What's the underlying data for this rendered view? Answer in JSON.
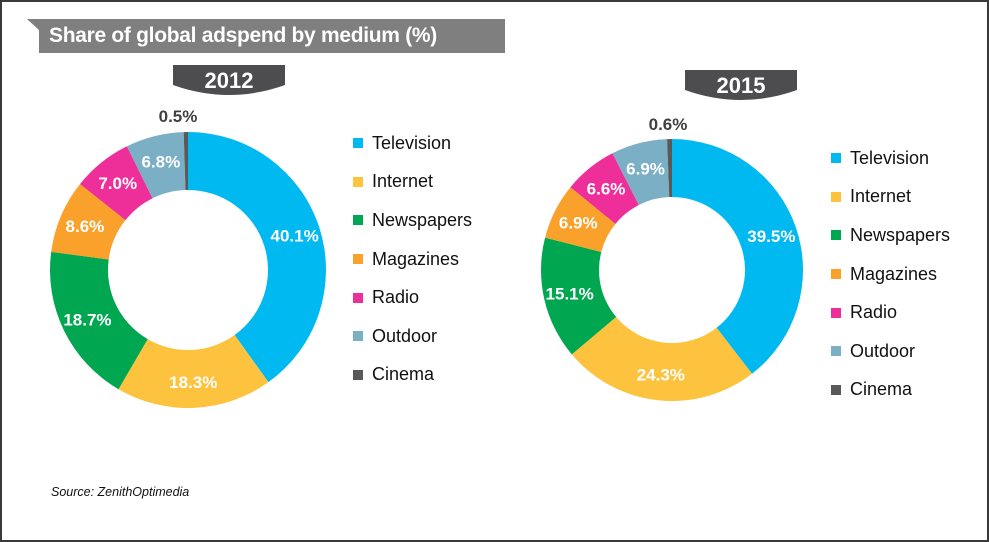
{
  "title": "Share of global adspend by medium (%)",
  "source": "Source: ZenithOptimedia",
  "colors": {
    "banner": "#7f7f7f",
    "tab": "#4d4d4f",
    "Television": "#00B9F1",
    "Internet": "#FDC33E",
    "Newspapers": "#00A650",
    "Magazines": "#F9A12A",
    "Radio": "#EE2F9A",
    "Outdoor": "#7AAFC6",
    "Cinema": "#595959"
  },
  "chart_data": [
    {
      "type": "pie",
      "variant": "donut",
      "title": "2012",
      "categories": [
        "Television",
        "Internet",
        "Newspapers",
        "Magazines",
        "Radio",
        "Outdoor",
        "Cinema"
      ],
      "values": [
        40.1,
        18.3,
        18.7,
        8.6,
        7.0,
        6.8,
        0.5
      ],
      "labels": [
        "40.1%",
        "18.3%",
        "18.7%",
        "8.6%",
        "7.0%",
        "6.8%",
        "0.5%"
      ],
      "legend": [
        "Television",
        "Internet",
        "Newspapers",
        "Magazines",
        "Radio",
        "Outdoor",
        "Cinema"
      ],
      "legend_position": "right",
      "start": "top",
      "direction": "clockwise"
    },
    {
      "type": "pie",
      "variant": "donut",
      "title": "2015",
      "categories": [
        "Television",
        "Internet",
        "Newspapers",
        "Magazines",
        "Radio",
        "Outdoor",
        "Cinema"
      ],
      "values": [
        39.5,
        24.3,
        15.1,
        6.9,
        6.6,
        6.9,
        0.6
      ],
      "labels": [
        "39.5%",
        "24.3%",
        "15.1%",
        "6.9%",
        "6.6%",
        "6.9%",
        "0.6%"
      ],
      "legend": [
        "Television",
        "Internet",
        "Newspapers",
        "Magazines",
        "Radio",
        "Outdoor",
        "Cinema"
      ],
      "legend_position": "right",
      "start": "top",
      "direction": "clockwise"
    }
  ]
}
